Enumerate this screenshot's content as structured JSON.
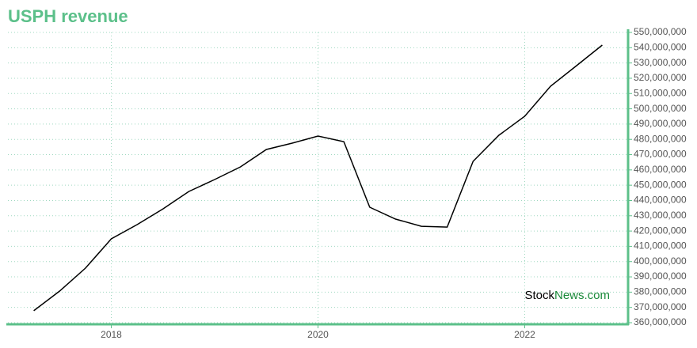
{
  "chart_data": {
    "type": "line",
    "title": "USPH revenue",
    "watermark": {
      "prefix": "Stock",
      "suffix": "News.com"
    },
    "x": [
      2017.25,
      2017.5,
      2017.75,
      2018,
      2018.25,
      2018.5,
      2018.75,
      2019,
      2019.25,
      2019.5,
      2019.75,
      2020,
      2020.25,
      2020.5,
      2020.75,
      2021,
      2021.25,
      2021.5,
      2021.75,
      2022,
      2022.25,
      2022.5,
      2022.75
    ],
    "series": [
      {
        "name": "USPH revenue",
        "color": "#000000",
        "values": [
          367800000,
          380700000,
          395700000,
          414900000,
          424200000,
          434500000,
          445900000,
          453700000,
          462000000,
          473400000,
          477500000,
          482200000,
          478500000,
          435600000,
          427800000,
          423100000,
          422600000,
          465600000,
          482700000,
          495100000,
          514800000,
          528200000,
          541700000
        ]
      }
    ],
    "xlim": [
      2017,
      2023
    ],
    "xticks": [
      2018,
      2020,
      2022
    ],
    "ylim": [
      360000000,
      550000000
    ],
    "yticks": [
      {
        "value": 360000000,
        "label": "360,000,000"
      },
      {
        "value": 370000000,
        "label": "370,000,000"
      },
      {
        "value": 380000000,
        "label": "380,000,000"
      },
      {
        "value": 390000000,
        "label": "390,000,000"
      },
      {
        "value": 400000000,
        "label": "400,000,000"
      },
      {
        "value": 410000000,
        "label": "410,000,000"
      },
      {
        "value": 420000000,
        "label": "420,000,000"
      },
      {
        "value": 430000000,
        "label": "430,000,000"
      },
      {
        "value": 440000000,
        "label": "440,000,000"
      },
      {
        "value": 450000000,
        "label": "450,000,000"
      },
      {
        "value": 460000000,
        "label": "460,000,000"
      },
      {
        "value": 470000000,
        "label": "470,000,000"
      },
      {
        "value": 480000000,
        "label": "480,000,000"
      },
      {
        "value": 490000000,
        "label": "490,000,000"
      },
      {
        "value": 500000000,
        "label": "500,000,000"
      },
      {
        "value": 510000000,
        "label": "510,000,000"
      },
      {
        "value": 520000000,
        "label": "520,000,000"
      },
      {
        "value": 530000000,
        "label": "530,000,000"
      },
      {
        "value": 540000000,
        "label": "540,000,000"
      },
      {
        "value": 550000000,
        "label": "550,000,000"
      }
    ],
    "grid": true,
    "axis_color": "#5cc08a"
  }
}
